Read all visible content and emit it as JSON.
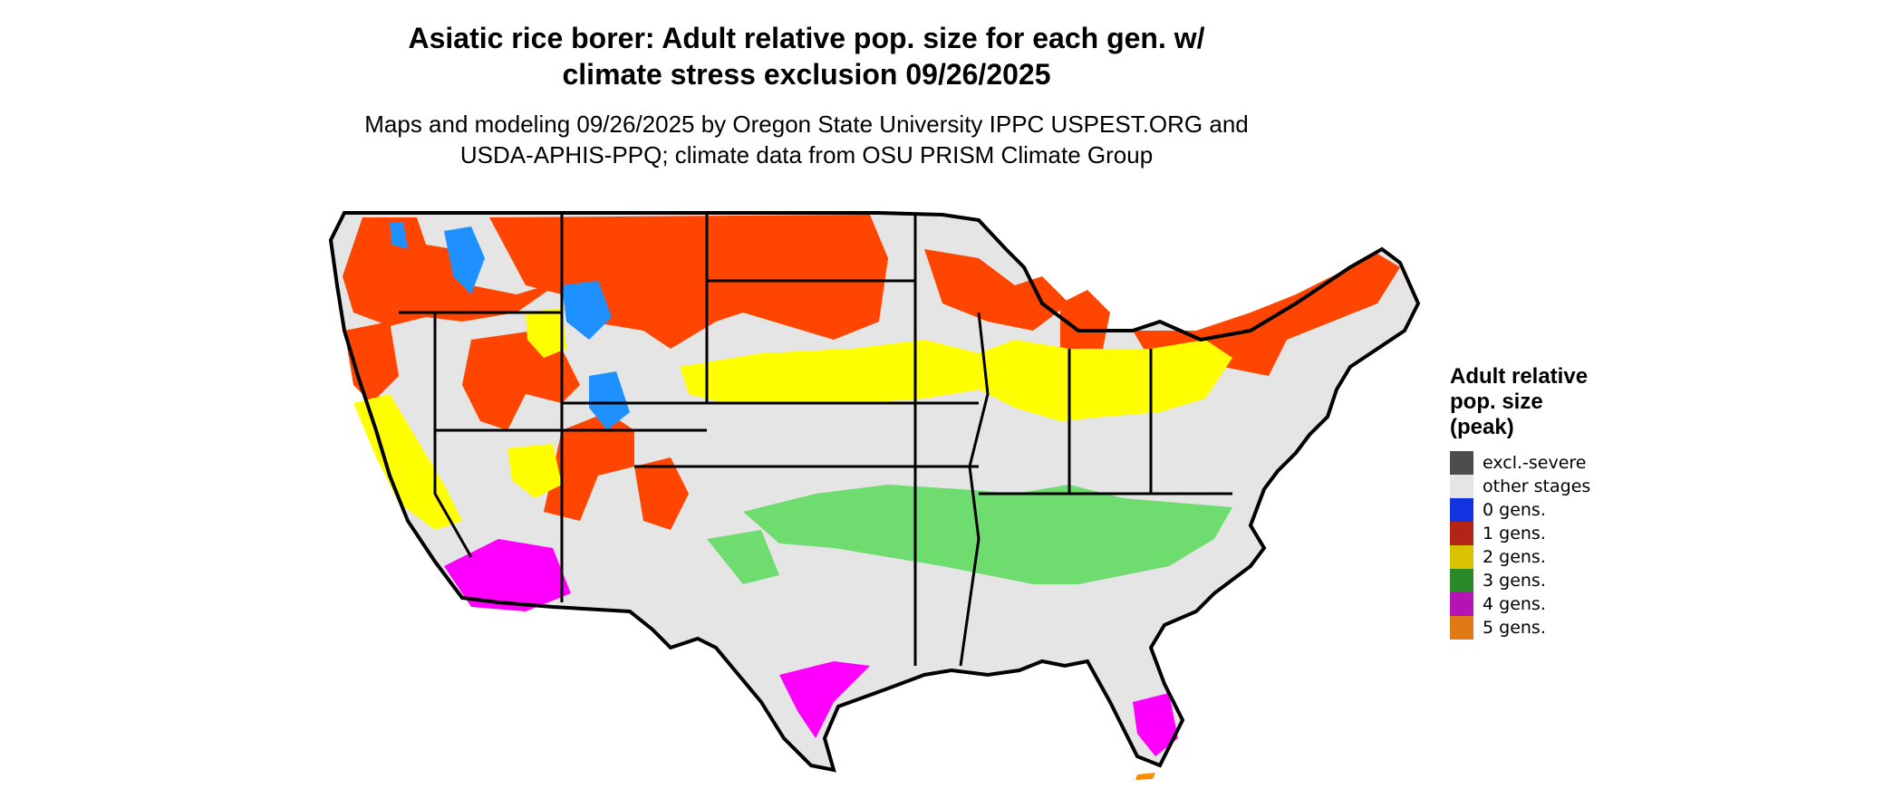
{
  "title": {
    "line1": "Asiatic rice borer: Adult relative pop. size for each gen. w/",
    "line2": "climate stress exclusion 09/26/2025"
  },
  "subtitle": {
    "line1": "Maps and modeling 09/26/2025 by Oregon State University IPPC USPEST.ORG and",
    "line2": "USDA-APHIS-PPQ; climate data from OSU PRISM Climate Group"
  },
  "legend": {
    "title_lines": [
      "Adult relative",
      "pop. size",
      "(peak)"
    ],
    "items": [
      {
        "label": "excl.-severe",
        "color": "#4d4d4d"
      },
      {
        "label": "other stages",
        "color": "#e5e5e5"
      },
      {
        "label": "0 gens.",
        "color": "#1433e0"
      },
      {
        "label": "1 gens.",
        "color": "#b32416"
      },
      {
        "label": "2 gens.",
        "color": "#d9c200"
      },
      {
        "label": "3 gens.",
        "color": "#2a8a2a"
      },
      {
        "label": "4 gens.",
        "color": "#b414b4"
      },
      {
        "label": "5 gens.",
        "color": "#e07a16"
      }
    ]
  },
  "map_colors": {
    "land": "#e5e5e5",
    "border": "#000000",
    "one_gen_fill": "#ff4500",
    "zero_gen_fill": "#1e90ff",
    "two_gen_fill": "#ffff00",
    "three_gen_fill": "#6fdc6f",
    "four_gen_fill": "#ff00ff",
    "five_gen_fill": "#ff8c00"
  }
}
